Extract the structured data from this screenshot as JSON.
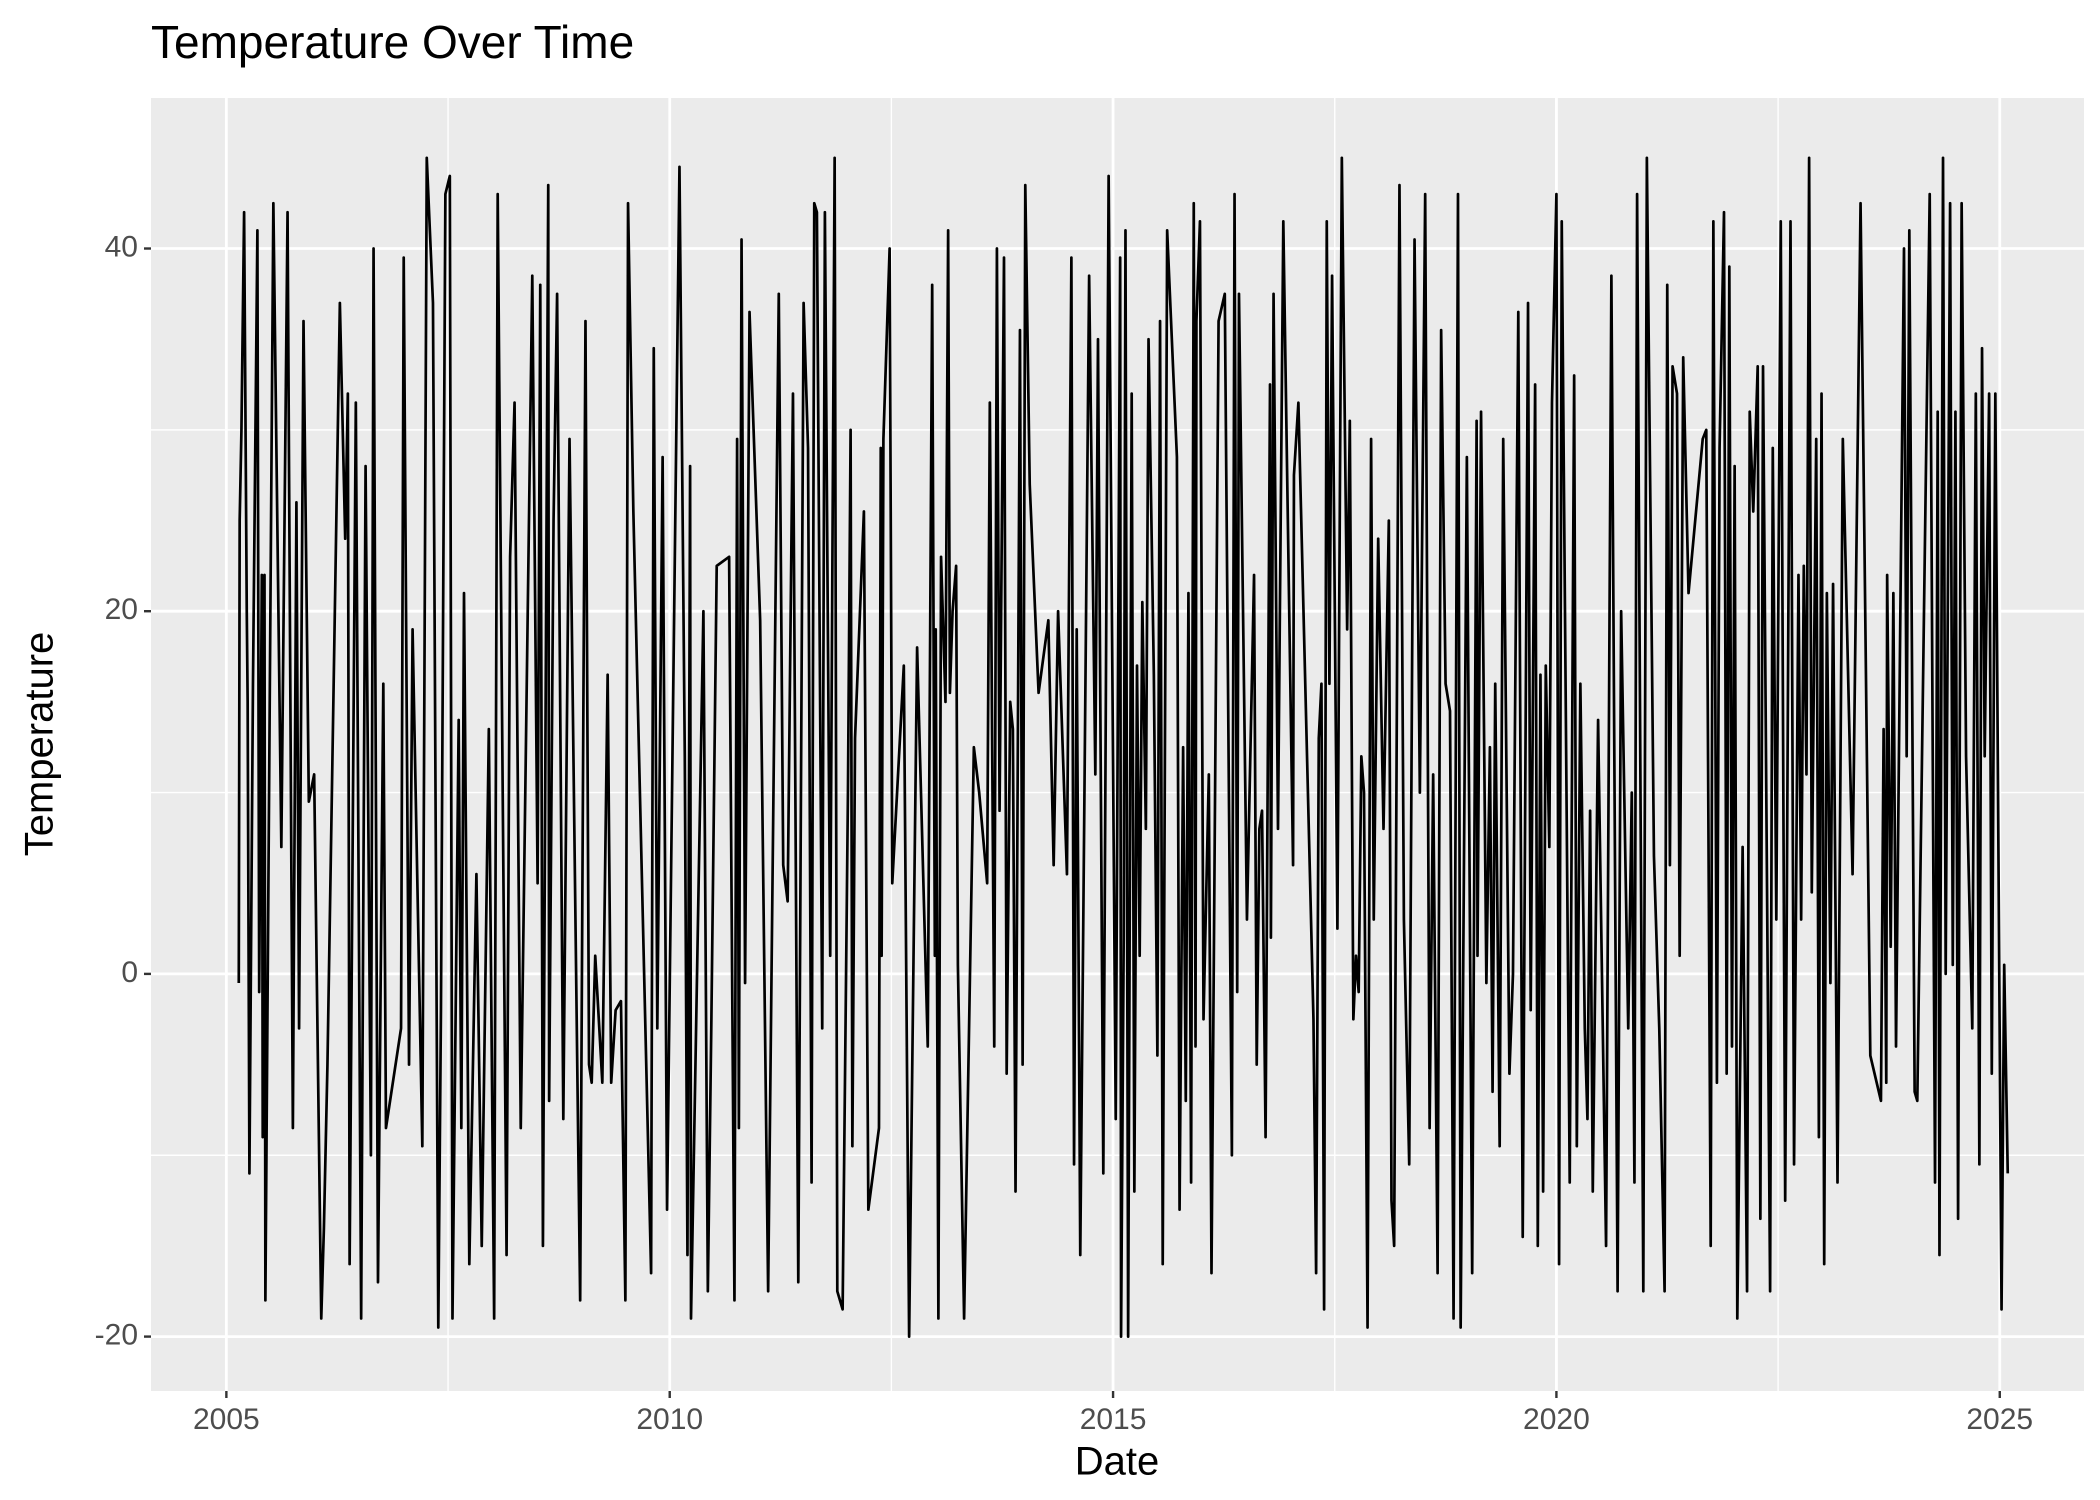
{
  "chart_data": {
    "type": "line",
    "title": "Temperature Over Time",
    "xlabel": "Date",
    "ylabel": "Temperature",
    "color": "#000000",
    "panel_color": "#ebebeb",
    "grid": true,
    "xlim": [
      2004.15,
      2025.95
    ],
    "ylim": [
      -23,
      48.3
    ],
    "xticks": [
      2005,
      2010,
      2015,
      2020,
      2025
    ],
    "yticks": [
      -20,
      0,
      20,
      40
    ],
    "x_minor_ticks": [
      2007.5,
      2012.5,
      2017.5,
      2022.5
    ],
    "y_minor_ticks": [
      -10,
      10,
      30
    ],
    "x": [
      2005.14,
      2005.15,
      2005.17,
      2005.2,
      2005.23,
      2005.24,
      2005.26,
      2005.3,
      2005.35,
      2005.37,
      2005.4,
      2005.41,
      2005.43,
      2005.44,
      2005.53,
      2005.62,
      2005.69,
      2005.75,
      2005.79,
      2005.82,
      2005.87,
      2005.93,
      2005.99,
      2006.07,
      2006.1,
      2006.14,
      2006.28,
      2006.34,
      2006.37,
      2006.39,
      2006.46,
      2006.52,
      2006.57,
      2006.63,
      2006.66,
      2006.71,
      2006.77,
      2006.8,
      2006.97,
      2007.0,
      2007.06,
      2007.1,
      2007.21,
      2007.26,
      2007.33,
      2007.39,
      2007.42,
      2007.47,
      2007.52,
      2007.55,
      2007.62,
      2007.65,
      2007.68,
      2007.74,
      2007.82,
      2007.88,
      2007.96,
      2008.02,
      2008.06,
      2008.16,
      2008.2,
      2008.25,
      2008.32,
      2008.45,
      2008.51,
      2008.54,
      2008.57,
      2008.63,
      2008.64,
      2008.69,
      2008.73,
      2008.8,
      2008.87,
      2008.99,
      2009.05,
      2009.09,
      2009.12,
      2009.16,
      2009.24,
      2009.3,
      2009.34,
      2009.39,
      2009.45,
      2009.5,
      2009.53,
      2009.59,
      2009.79,
      2009.82,
      2009.86,
      2009.92,
      2009.97,
      2010.11,
      2010.17,
      2010.2,
      2010.23,
      2010.24,
      2010.38,
      2010.43,
      2010.47,
      2010.53,
      2010.67,
      2010.73,
      2010.76,
      2010.78,
      2010.81,
      2010.85,
      2010.9,
      2011.02,
      2011.11,
      2011.23,
      2011.28,
      2011.33,
      2011.39,
      2011.45,
      2011.51,
      2011.56,
      2011.6,
      2011.63,
      2011.66,
      2011.72,
      2011.75,
      2011.81,
      2011.86,
      2011.89,
      2011.95,
      2012.01,
      2012.04,
      2012.06,
      2012.09,
      2012.19,
      2012.24,
      2012.36,
      2012.38,
      2012.39,
      2012.41,
      2012.48,
      2012.51,
      2012.64,
      2012.7,
      2012.79,
      2012.91,
      2012.96,
      2012.99,
      2013.0,
      2013.03,
      2013.06,
      2013.11,
      2013.14,
      2013.16,
      2013.19,
      2013.23,
      2013.25,
      2013.32,
      2013.43,
      2013.49,
      2013.58,
      2013.61,
      2013.66,
      2013.69,
      2013.72,
      2013.77,
      2013.8,
      2013.84,
      2013.87,
      2013.9,
      2013.95,
      2013.98,
      2014.01,
      2014.06,
      2014.16,
      2014.27,
      2014.33,
      2014.38,
      2014.48,
      2014.53,
      2014.56,
      2014.59,
      2014.63,
      2014.73,
      2014.8,
      2014.83,
      2014.89,
      2014.95,
      2015.03,
      2015.08,
      2015.09,
      2015.12,
      2015.14,
      2015.17,
      2015.21,
      2015.24,
      2015.27,
      2015.3,
      2015.33,
      2015.37,
      2015.4,
      2015.46,
      2015.5,
      2015.53,
      2015.56,
      2015.61,
      2015.72,
      2015.75,
      2015.79,
      2015.82,
      2015.85,
      2015.88,
      2015.91,
      2015.93,
      2015.94,
      2015.98,
      2016.02,
      2016.08,
      2016.11,
      2016.19,
      2016.26,
      2016.34,
      2016.37,
      2016.4,
      2016.42,
      2016.51,
      2016.59,
      2016.62,
      2016.65,
      2016.68,
      2016.72,
      2016.77,
      2016.78,
      2016.81,
      2016.86,
      2016.92,
      2017.03,
      2017.04,
      2017.09,
      2017.26,
      2017.29,
      2017.32,
      2017.35,
      2017.38,
      2017.41,
      2017.44,
      2017.47,
      2017.53,
      2017.58,
      2017.64,
      2017.67,
      2017.71,
      2017.74,
      2017.77,
      2017.8,
      2017.83,
      2017.87,
      2017.91,
      2017.94,
      2017.99,
      2018.05,
      2018.11,
      2018.14,
      2018.17,
      2018.23,
      2018.28,
      2018.34,
      2018.4,
      2018.46,
      2018.52,
      2018.57,
      2018.61,
      2018.66,
      2018.7,
      2018.75,
      2018.8,
      2018.84,
      2018.89,
      2018.92,
      2018.99,
      2019.05,
      2019.1,
      2019.11,
      2019.15,
      2019.21,
      2019.25,
      2019.28,
      2019.31,
      2019.36,
      2019.4,
      2019.47,
      2019.51,
      2019.57,
      2019.62,
      2019.68,
      2019.71,
      2019.76,
      2019.79,
      2019.82,
      2019.85,
      2019.88,
      2019.92,
      2019.95,
      2020.0,
      2020.03,
      2020.06,
      2020.15,
      2020.2,
      2020.23,
      2020.27,
      2020.32,
      2020.35,
      2020.38,
      2020.41,
      2020.47,
      2020.56,
      2020.62,
      2020.69,
      2020.73,
      2020.81,
      2020.85,
      2020.88,
      2020.91,
      2020.98,
      2021.02,
      2021.1,
      2021.16,
      2021.22,
      2021.25,
      2021.28,
      2021.31,
      2021.36,
      2021.39,
      2021.43,
      2021.49,
      2021.65,
      2021.69,
      2021.74,
      2021.77,
      2021.81,
      2021.84,
      2021.89,
      2021.92,
      2021.95,
      2021.98,
      2022.01,
      2022.04,
      2022.1,
      2022.15,
      2022.18,
      2022.22,
      2022.27,
      2022.3,
      2022.33,
      2022.41,
      2022.44,
      2022.48,
      2022.53,
      2022.58,
      2022.64,
      2022.68,
      2022.73,
      2022.76,
      2022.79,
      2022.82,
      2022.85,
      2022.88,
      2022.93,
      2022.96,
      2022.99,
      2023.02,
      2023.05,
      2023.09,
      2023.12,
      2023.17,
      2023.23,
      2023.34,
      2023.43,
      2023.54,
      2023.66,
      2023.69,
      2023.72,
      2023.73,
      2023.77,
      2023.8,
      2023.83,
      2023.92,
      2023.95,
      2023.98,
      2024.04,
      2024.07,
      2024.21,
      2024.27,
      2024.3,
      2024.32,
      2024.36,
      2024.39,
      2024.44,
      2024.47,
      2024.5,
      2024.53,
      2024.57,
      2024.62,
      2024.69,
      2024.73,
      2024.77,
      2024.8,
      2024.83,
      2024.88,
      2024.91,
      2024.95,
      2025.02,
      2025.05,
      2025.09
    ],
    "values": [
      -0.5,
      25,
      30,
      42,
      20,
      15,
      -11,
      16,
      41,
      -1,
      22,
      -9,
      22,
      -18,
      42.5,
      7,
      42,
      -8.5,
      26,
      -3,
      36,
      9.5,
      11,
      -19,
      -14,
      -5,
      37,
      24,
      32,
      -16,
      31.5,
      -19,
      28,
      -10,
      40,
      -17,
      16,
      -8.5,
      -3,
      39.5,
      -5,
      19,
      -9.5,
      45,
      37,
      -19.5,
      -2,
      43,
      44,
      -19,
      14,
      -8.5,
      21,
      -16,
      5.5,
      -15,
      13.5,
      -19,
      43,
      -15.5,
      23,
      31.5,
      -8.5,
      38.5,
      5,
      38,
      -15,
      43.5,
      -7,
      25,
      37.5,
      -8,
      29.5,
      -18,
      36,
      -5,
      -6,
      1,
      -6,
      16.5,
      -6,
      -2,
      -1.5,
      -18,
      42.5,
      25.5,
      -16.5,
      34.5,
      -3,
      28.5,
      -13,
      44.5,
      12,
      -15.5,
      28,
      -19,
      20,
      -17.5,
      -2.5,
      22.5,
      23,
      -18,
      29.5,
      -8.5,
      40.5,
      -0.5,
      36.5,
      19.5,
      -17.5,
      37.5,
      6,
      4,
      32,
      -17,
      37,
      29,
      -11.5,
      42.5,
      42,
      -3,
      42,
      1,
      45,
      -17.5,
      -18.5,
      10,
      30,
      -9.5,
      13,
      25.5,
      -13,
      -8.5,
      29,
      1,
      29.5,
      40,
      5,
      17,
      -20,
      18,
      -4,
      38,
      1,
      19,
      -19,
      23,
      15,
      41,
      15.5,
      20,
      22.5,
      0.5,
      -19,
      12.5,
      10,
      5,
      31.5,
      -4,
      40,
      9,
      39.5,
      -5.5,
      15,
      13.5,
      -12,
      35.5,
      -5,
      43.5,
      27,
      15.5,
      19.5,
      6,
      20,
      5.5,
      39.5,
      -10.5,
      19,
      -15.5,
      38.5,
      11,
      35,
      -11,
      44,
      -8,
      39.5,
      -20,
      2,
      41,
      -20,
      32,
      -12,
      17,
      1,
      20.5,
      8,
      35,
      16.5,
      -4.5,
      36,
      -16,
      41,
      28.5,
      -13,
      12.5,
      -7,
      21,
      -11.5,
      42.5,
      -4,
      36,
      41.5,
      -2.5,
      11,
      -16.5,
      36,
      37.5,
      -10,
      43,
      -1,
      37.5,
      3,
      22,
      -5,
      8,
      9,
      -9,
      32.5,
      2,
      37.5,
      8,
      41.5,
      6,
      27.5,
      31.5,
      -2.5,
      -16.5,
      13,
      16,
      -18.5,
      41.5,
      16,
      38.5,
      2.5,
      45,
      19,
      30.5,
      -2.5,
      1,
      -1,
      12,
      10,
      -19.5,
      29.5,
      3,
      24,
      8,
      25,
      -12.5,
      -15,
      43.5,
      3,
      -10.5,
      40.5,
      10,
      43,
      -8.5,
      11,
      -16.5,
      35.5,
      16,
      14.5,
      -19,
      43,
      -19.5,
      28.5,
      -16.5,
      30.5,
      1,
      31,
      -0.5,
      12.5,
      -6.5,
      16,
      -9.5,
      29.5,
      -5.5,
      0,
      36.5,
      -14.5,
      37,
      -2,
      32.5,
      -15,
      16.5,
      -12,
      17,
      7,
      31.5,
      43,
      -16,
      41.5,
      -11.5,
      33,
      -9.5,
      16,
      -3,
      -8,
      9,
      -12,
      14,
      -15,
      38.5,
      -17.5,
      20,
      -3,
      10,
      -11.5,
      43,
      -17.5,
      45,
      6.5,
      -3,
      -17.5,
      38,
      6,
      33.5,
      32,
      1,
      34,
      21,
      29.5,
      30,
      -15,
      41.5,
      -6,
      29,
      42,
      -5.5,
      39,
      -4,
      28,
      -19,
      7,
      -17.5,
      31,
      25.5,
      33.5,
      -13.5,
      33.5,
      -17.5,
      29,
      3,
      41.5,
      -12.5,
      41.5,
      -10.5,
      22,
      3,
      22.5,
      11,
      45,
      4.5,
      29.5,
      -9,
      32,
      -16,
      21,
      -0.5,
      21.5,
      -11.5,
      29.5,
      5.5,
      42.5,
      -4.5,
      -7,
      13.5,
      -6,
      22,
      1.5,
      21,
      -4,
      40,
      12,
      41,
      -6.5,
      -7,
      43,
      -11.5,
      31,
      -15.5,
      45,
      0,
      42.5,
      0.5,
      31,
      -13.5,
      42.5,
      12,
      -3,
      32,
      -10.5,
      34.5,
      12,
      32,
      -5.5,
      32,
      -18.5,
      0.5,
      -11
    ]
  }
}
